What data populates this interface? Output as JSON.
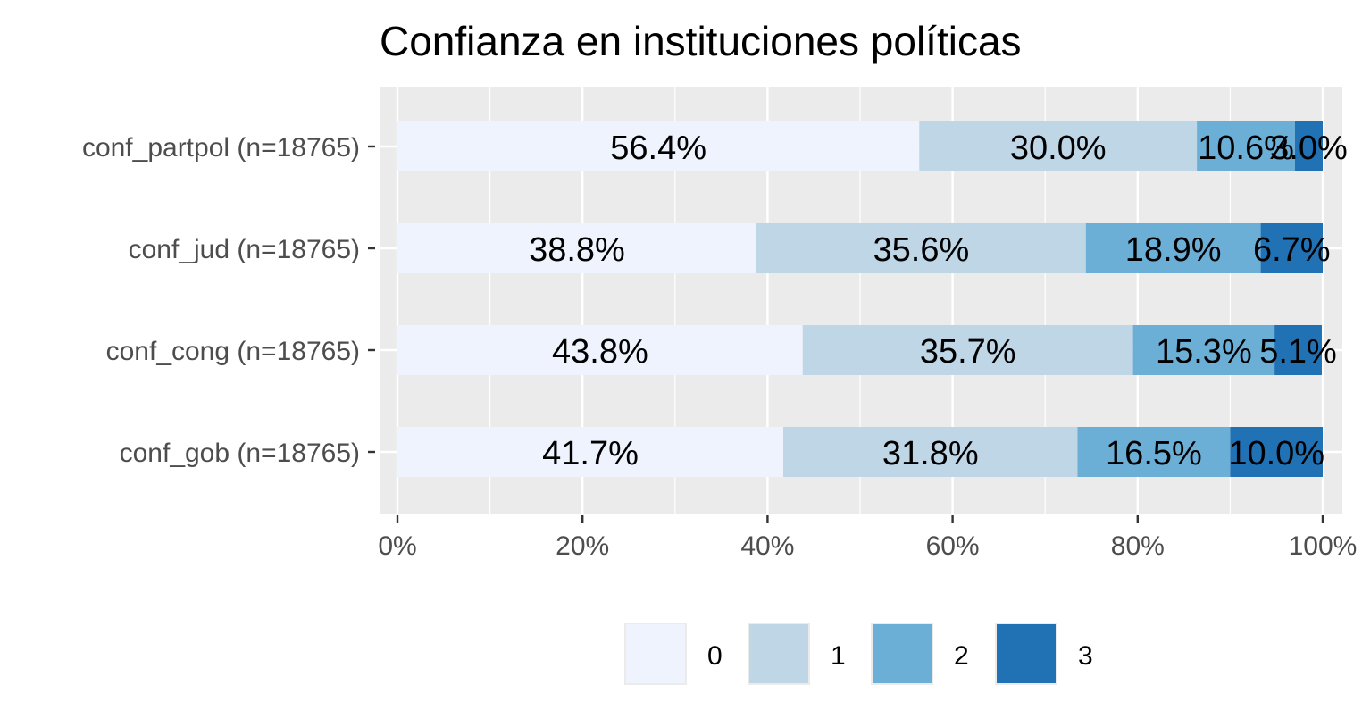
{
  "chart_data": {
    "type": "bar",
    "orientation": "horizontal",
    "stacked": true,
    "title": "Confianza en instituciones políticas",
    "xlabel": "",
    "ylabel": "",
    "xlim": [
      0,
      100
    ],
    "x_ticks": [
      "0%",
      "20%",
      "40%",
      "60%",
      "80%",
      "100%"
    ],
    "grid": true,
    "legend_position": "bottom",
    "categories": [
      "conf_partpol (n=18765)",
      "conf_jud (n=18765)",
      "conf_cong (n=18765)",
      "conf_gob (n=18765)"
    ],
    "series": [
      {
        "name": "0",
        "color": "#eef3fe",
        "values": [
          56.4,
          38.8,
          43.8,
          41.7
        ],
        "labels": [
          "56.4%",
          "38.8%",
          "43.8%",
          "41.7%"
        ]
      },
      {
        "name": "1",
        "color": "#bed6e6",
        "values": [
          30.0,
          35.6,
          35.7,
          31.8
        ],
        "labels": [
          "30.0%",
          "35.6%",
          "35.7%",
          "31.8%"
        ]
      },
      {
        "name": "2",
        "color": "#6baed6",
        "values": [
          10.6,
          18.9,
          15.3,
          16.5
        ],
        "labels": [
          "10.6%",
          "18.9%",
          "15.3%",
          "16.5%"
        ]
      },
      {
        "name": "3",
        "color": "#2171b5",
        "values": [
          3.0,
          6.7,
          5.1,
          10.0
        ],
        "labels": [
          "3.0%",
          "6.7%",
          "5.1%",
          "10.0%"
        ]
      }
    ]
  }
}
